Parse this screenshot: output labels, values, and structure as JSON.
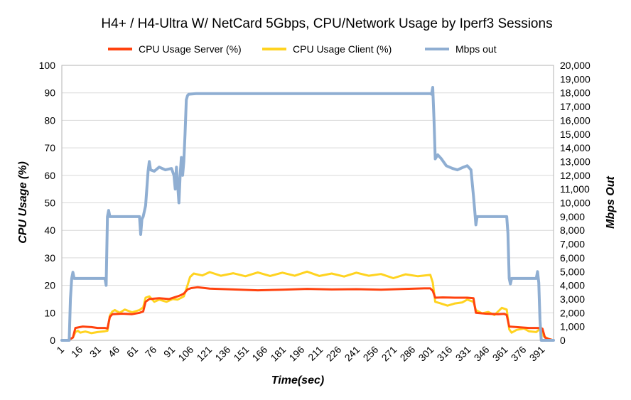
{
  "chart_data": {
    "type": "line",
    "title": "H4+ / H4-Ultra W/ NetCard 5Gbps, CPU/Network Usage by Iperf3 Sessions",
    "xlabel": "Time(sec)",
    "ylabel": "CPU Usage (%)",
    "y2label": "Mbps Out",
    "xlim": [
      1,
      400
    ],
    "ylim": [
      0,
      100
    ],
    "y2lim": [
      0,
      20000
    ],
    "x_ticks": [
      "1",
      "16",
      "31",
      "46",
      "61",
      "76",
      "91",
      "106",
      "121",
      "136",
      "151",
      "166",
      "181",
      "196",
      "211",
      "226",
      "241",
      "256",
      "271",
      "286",
      "301",
      "316",
      "331",
      "346",
      "361",
      "376",
      "391"
    ],
    "y_ticks": [
      "0",
      "10",
      "20",
      "30",
      "40",
      "50",
      "60",
      "70",
      "80",
      "90",
      "100"
    ],
    "y2_ticks": [
      "0",
      "1,000",
      "2,000",
      "3,000",
      "4,000",
      "5,000",
      "6,000",
      "7,000",
      "8,000",
      "9,000",
      "10,000",
      "11,000",
      "12,000",
      "13,000",
      "14,000",
      "15,000",
      "16,000",
      "17,000",
      "18,000",
      "19,000",
      "20,000"
    ],
    "grid": true,
    "legend_position": "top",
    "series": [
      {
        "name": "CPU Usage Server (%)",
        "axis": "left",
        "color": "#ff420e",
        "points": [
          [
            1,
            0
          ],
          [
            5,
            0
          ],
          [
            8,
            0.5
          ],
          [
            10,
            1
          ],
          [
            12,
            4.5
          ],
          [
            18,
            5
          ],
          [
            25,
            4.8
          ],
          [
            30,
            4.5
          ],
          [
            36,
            4.5
          ],
          [
            38,
            4.3
          ],
          [
            40,
            8.5
          ],
          [
            42,
            9.5
          ],
          [
            50,
            9.7
          ],
          [
            58,
            9.5
          ],
          [
            64,
            10
          ],
          [
            67,
            10.5
          ],
          [
            69,
            14
          ],
          [
            72,
            15
          ],
          [
            80,
            15.3
          ],
          [
            88,
            15
          ],
          [
            95,
            16
          ],
          [
            98,
            16.5
          ],
          [
            100,
            17
          ],
          [
            103,
            18.5
          ],
          [
            106,
            19
          ],
          [
            111,
            19.3
          ],
          [
            121,
            18.8
          ],
          [
            140,
            18.5
          ],
          [
            160,
            18.2
          ],
          [
            180,
            18.4
          ],
          [
            200,
            18.7
          ],
          [
            220,
            18.5
          ],
          [
            240,
            18.6
          ],
          [
            260,
            18.4
          ],
          [
            280,
            18.7
          ],
          [
            295,
            18.9
          ],
          [
            300,
            18.9
          ],
          [
            302,
            18
          ],
          [
            304,
            15.5
          ],
          [
            310,
            15.6
          ],
          [
            320,
            15.5
          ],
          [
            330,
            15.5
          ],
          [
            335,
            15.3
          ],
          [
            337,
            10
          ],
          [
            345,
            9.7
          ],
          [
            355,
            9.5
          ],
          [
            360,
            9.6
          ],
          [
            362,
            9.2
          ],
          [
            364,
            5
          ],
          [
            370,
            4.8
          ],
          [
            380,
            4.5
          ],
          [
            388,
            4.5
          ],
          [
            391,
            4.2
          ],
          [
            393,
            1
          ],
          [
            396,
            0.5
          ],
          [
            400,
            0
          ]
        ]
      },
      {
        "name": "CPU Usage Client (%)",
        "axis": "left",
        "color": "#ffd320",
        "points": [
          [
            1,
            0
          ],
          [
            5,
            0
          ],
          [
            8,
            0.5
          ],
          [
            10,
            1
          ],
          [
            12,
            3
          ],
          [
            14,
            3.5
          ],
          [
            16,
            2.8
          ],
          [
            20,
            3.2
          ],
          [
            25,
            2.6
          ],
          [
            30,
            3
          ],
          [
            36,
            3.3
          ],
          [
            38,
            3.5
          ],
          [
            40,
            9
          ],
          [
            42,
            10.5
          ],
          [
            44,
            11
          ],
          [
            48,
            10
          ],
          [
            52,
            11.2
          ],
          [
            58,
            10.2
          ],
          [
            64,
            11
          ],
          [
            67,
            12
          ],
          [
            69,
            15.5
          ],
          [
            72,
            16
          ],
          [
            76,
            14
          ],
          [
            80,
            14.8
          ],
          [
            86,
            14
          ],
          [
            91,
            15
          ],
          [
            95,
            14.8
          ],
          [
            98,
            15.5
          ],
          [
            100,
            16
          ],
          [
            103,
            20
          ],
          [
            105,
            23
          ],
          [
            108,
            24.3
          ],
          [
            115,
            23.6
          ],
          [
            121,
            24.8
          ],
          [
            130,
            23.5
          ],
          [
            140,
            24.4
          ],
          [
            150,
            23.3
          ],
          [
            160,
            24.7
          ],
          [
            170,
            23.4
          ],
          [
            180,
            24.6
          ],
          [
            190,
            23.5
          ],
          [
            200,
            25
          ],
          [
            210,
            23.4
          ],
          [
            220,
            24.3
          ],
          [
            230,
            23.2
          ],
          [
            240,
            24.6
          ],
          [
            250,
            23.5
          ],
          [
            260,
            24.1
          ],
          [
            270,
            22.6
          ],
          [
            280,
            24
          ],
          [
            290,
            23.3
          ],
          [
            300,
            23.8
          ],
          [
            302,
            21
          ],
          [
            304,
            14
          ],
          [
            308,
            13.5
          ],
          [
            314,
            12.6
          ],
          [
            320,
            13.4
          ],
          [
            326,
            13.8
          ],
          [
            330,
            14.8
          ],
          [
            335,
            14
          ],
          [
            337,
            11
          ],
          [
            342,
            9.8
          ],
          [
            347,
            10.3
          ],
          [
            352,
            9.2
          ],
          [
            358,
            11.8
          ],
          [
            362,
            11.2
          ],
          [
            364,
            4
          ],
          [
            366,
            2.8
          ],
          [
            370,
            3.8
          ],
          [
            376,
            4.3
          ],
          [
            380,
            3.3
          ],
          [
            386,
            3
          ],
          [
            390,
            4.6
          ],
          [
            392,
            1.5
          ],
          [
            396,
            0.5
          ],
          [
            400,
            0
          ]
        ]
      },
      {
        "name": "Mbps out",
        "axis": "right",
        "color": "#8faed2",
        "points": [
          [
            1,
            0
          ],
          [
            7,
            0
          ],
          [
            8,
            3000
          ],
          [
            9,
            4500
          ],
          [
            10,
            4950
          ],
          [
            11,
            4500
          ],
          [
            30,
            4500
          ],
          [
            36,
            4500
          ],
          [
            37,
            4000
          ],
          [
            38,
            9000
          ],
          [
            39,
            9450
          ],
          [
            40,
            9000
          ],
          [
            60,
            9000
          ],
          [
            64,
            9000
          ],
          [
            65,
            7700
          ],
          [
            66,
            8800
          ],
          [
            67,
            9000
          ],
          [
            69,
            9800
          ],
          [
            71,
            12300
          ],
          [
            72,
            13000
          ],
          [
            73,
            12400
          ],
          [
            76,
            12300
          ],
          [
            80,
            12600
          ],
          [
            85,
            12400
          ],
          [
            90,
            12500
          ],
          [
            92,
            12000
          ],
          [
            93,
            11000
          ],
          [
            94,
            12600
          ],
          [
            96,
            10000
          ],
          [
            97,
            12000
          ],
          [
            98,
            13300
          ],
          [
            99,
            12000
          ],
          [
            100,
            13000
          ],
          [
            101,
            15000
          ],
          [
            102,
            17500
          ],
          [
            103,
            17800
          ],
          [
            104,
            17900
          ],
          [
            110,
            17950
          ],
          [
            150,
            17950
          ],
          [
            200,
            17950
          ],
          [
            250,
            17950
          ],
          [
            300,
            17950
          ],
          [
            301,
            17900
          ],
          [
            302,
            18400
          ],
          [
            303,
            16000
          ],
          [
            304,
            13200
          ],
          [
            306,
            13500
          ],
          [
            309,
            13200
          ],
          [
            313,
            12700
          ],
          [
            318,
            12500
          ],
          [
            322,
            12400
          ],
          [
            327,
            12600
          ],
          [
            330,
            12700
          ],
          [
            333,
            12400
          ],
          [
            335,
            10500
          ],
          [
            336,
            9500
          ],
          [
            337,
            8400
          ],
          [
            338,
            9000
          ],
          [
            362,
            9000
          ],
          [
            363,
            7800
          ],
          [
            364,
            4500
          ],
          [
            365,
            4100
          ],
          [
            366,
            4500
          ],
          [
            384,
            4500
          ],
          [
            386,
            4500
          ],
          [
            387,
            5000
          ],
          [
            388,
            4200
          ],
          [
            389,
            1500
          ],
          [
            390,
            0
          ],
          [
            400,
            0
          ]
        ]
      }
    ]
  }
}
